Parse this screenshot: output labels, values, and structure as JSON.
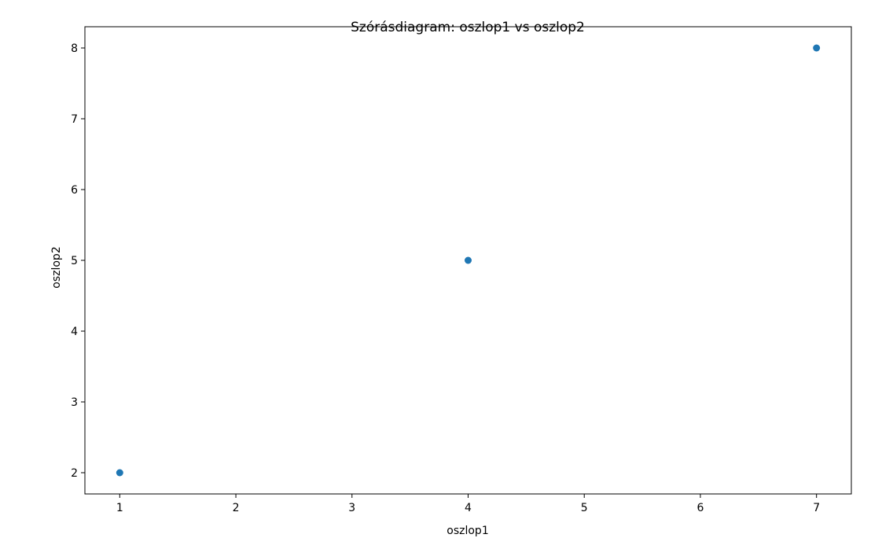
{
  "chart_data": {
    "type": "scatter",
    "title": "Szórásdiagram: oszlop1 vs oszlop2",
    "xlabel": "oszlop1",
    "ylabel": "oszlop2",
    "xlim": [
      0.7,
      7.3
    ],
    "ylim": [
      1.7,
      8.3
    ],
    "xticks": [
      "1",
      "2",
      "3",
      "4",
      "5",
      "6",
      "7"
    ],
    "yticks": [
      "2",
      "3",
      "4",
      "5",
      "6",
      "7",
      "8"
    ],
    "grid": false,
    "series": [
      {
        "color": "#1f77b4",
        "points": [
          {
            "x": 1,
            "y": 2
          },
          {
            "x": 4,
            "y": 5
          },
          {
            "x": 7,
            "y": 8
          }
        ]
      }
    ]
  }
}
